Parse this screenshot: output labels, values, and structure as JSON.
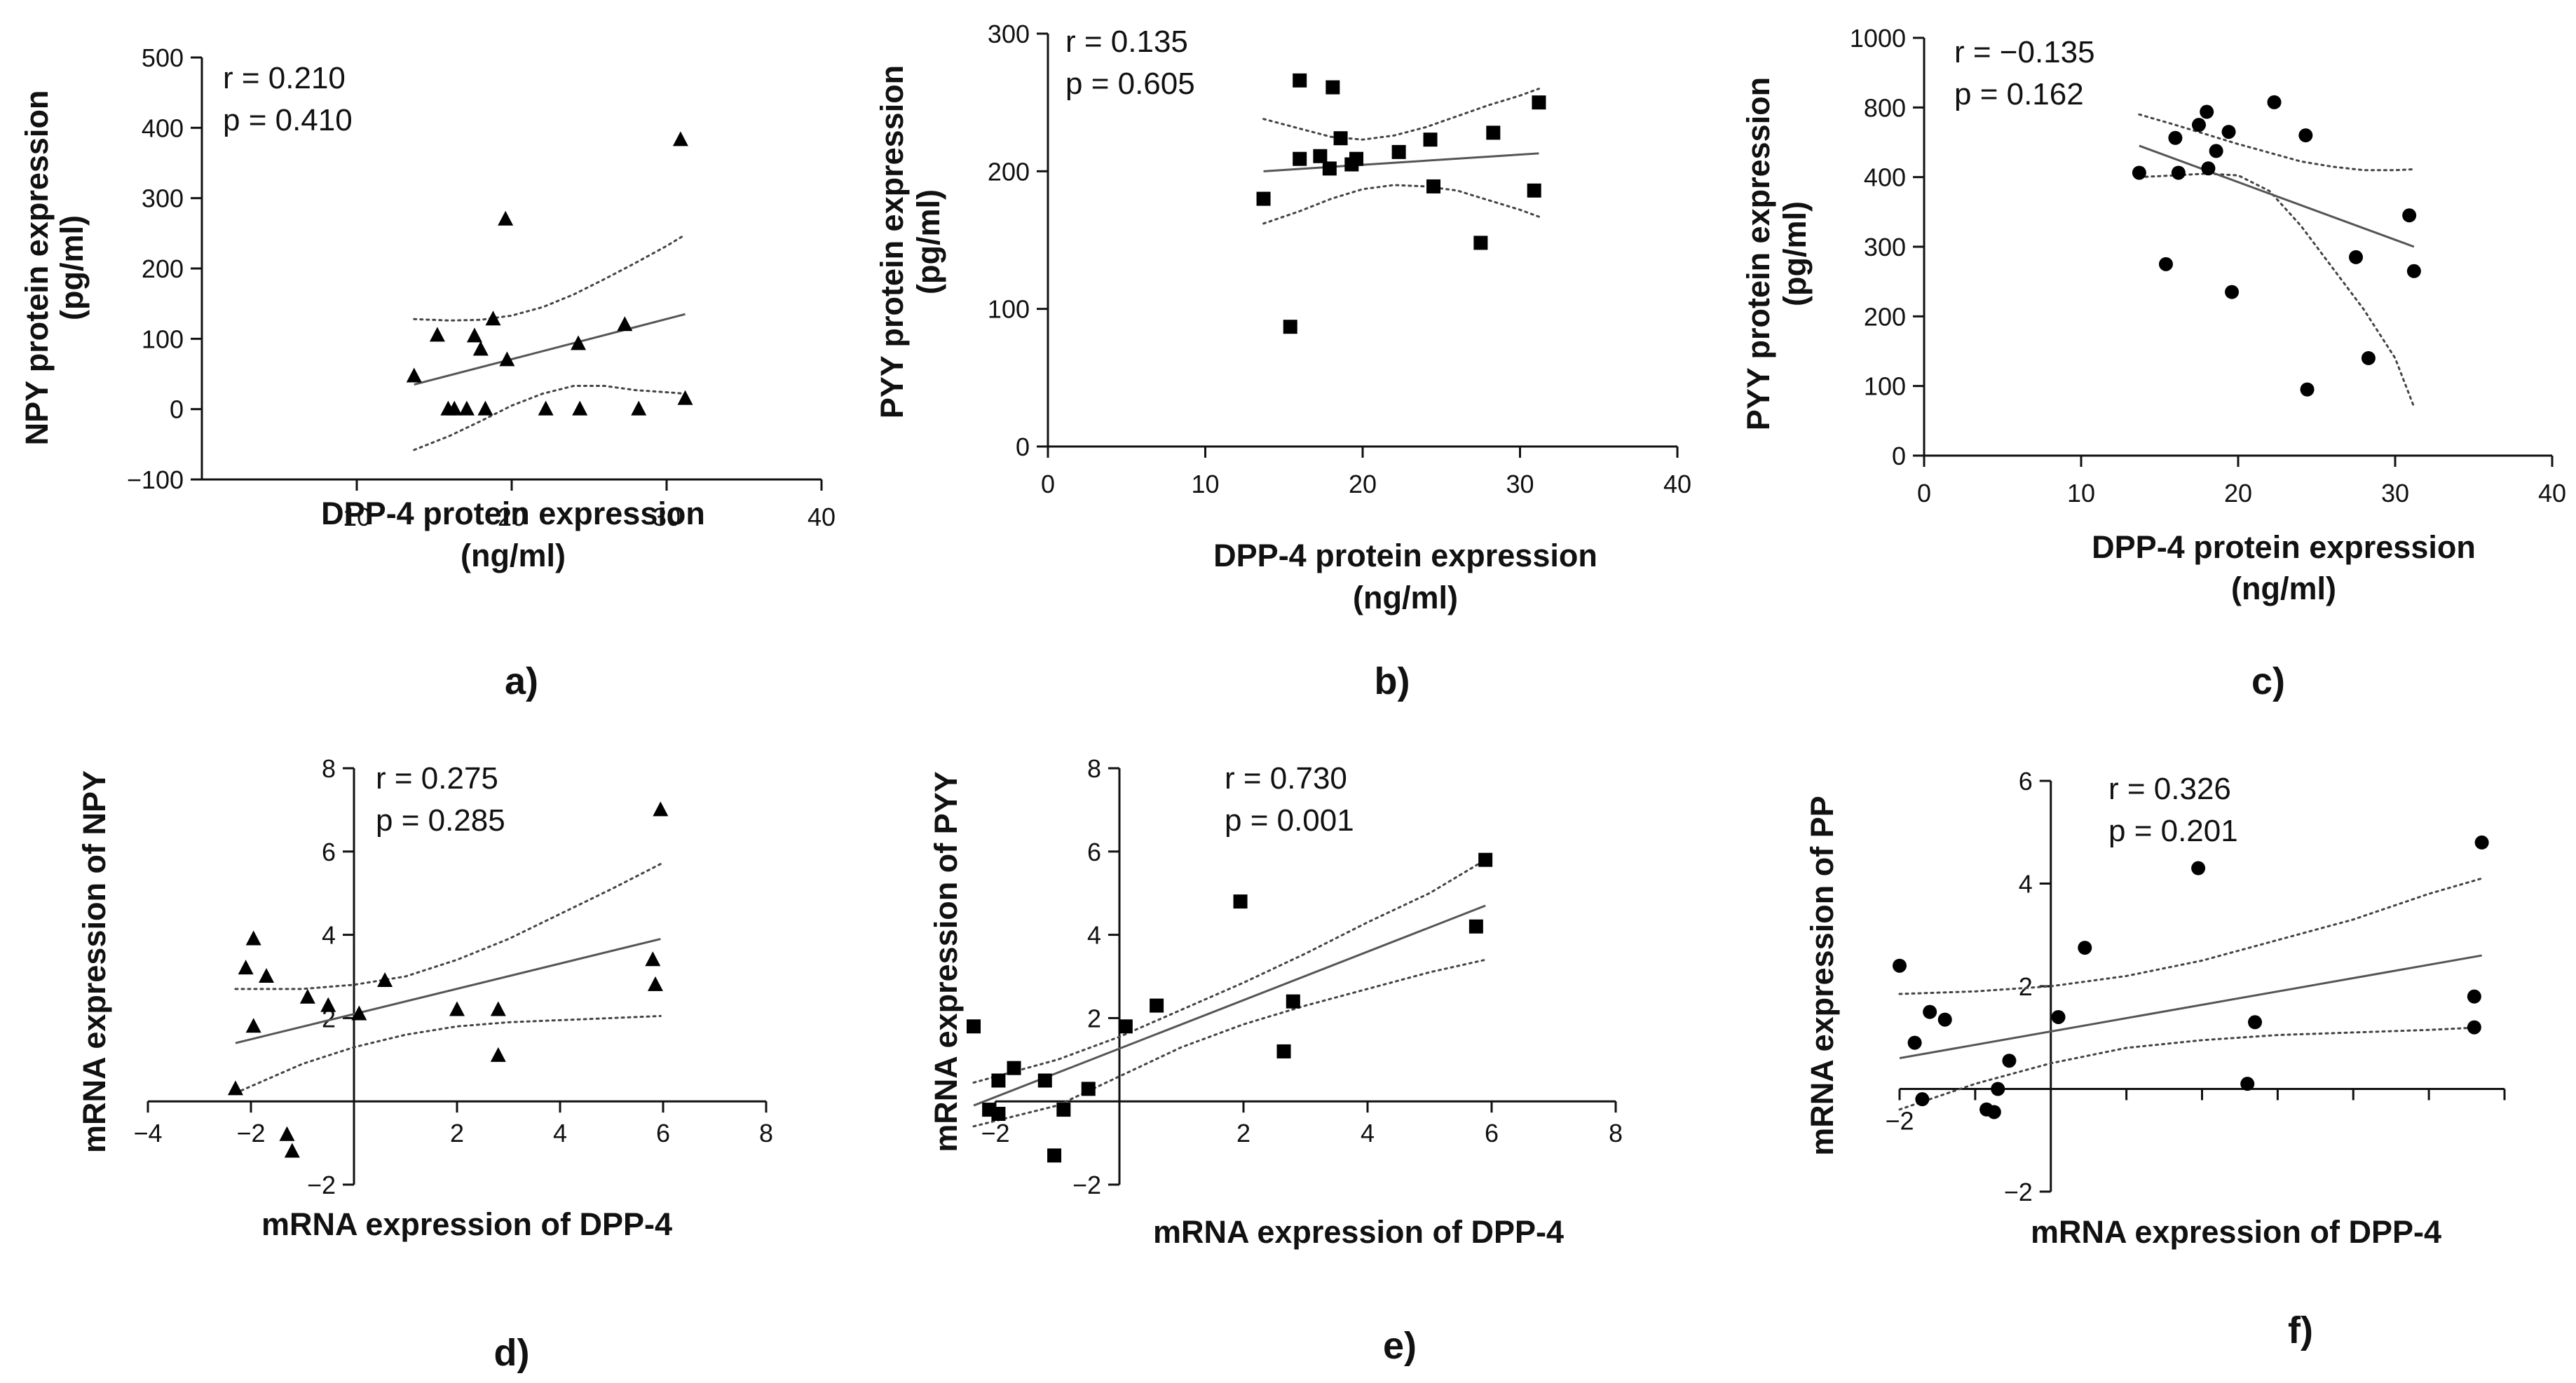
{
  "chart_data": [
    {
      "type": "scatter",
      "panel_label": "a)",
      "xlabel_line1": "DPP-4 protein expression",
      "xlabel_line2": "(ng/ml)",
      "ylabel_line1": "NPY protein expression",
      "ylabel_line2": "(pg/ml)",
      "stat_r": "r = 0.210",
      "stat_p": "p = 0.410",
      "marker": "triangle",
      "xlim": [
        0,
        40
      ],
      "ylim": [
        -100,
        500
      ],
      "xticks": [
        10,
        20,
        30,
        40
      ],
      "xtick_labels": [
        "10",
        "20",
        "30",
        "40"
      ],
      "yticks": [
        -100,
        0,
        100,
        200,
        300,
        400,
        500
      ],
      "ytick_labels": [
        "−100",
        "0",
        "100",
        "200",
        "300",
        "400",
        "500"
      ],
      "x": [
        13.7,
        15.2,
        15.9,
        16.3,
        17.1,
        17.6,
        18.0,
        18.3,
        18.8,
        19.6,
        19.7,
        22.2,
        24.3,
        24.4,
        27.3,
        28.2,
        30.9,
        31.2
      ],
      "y": [
        47,
        105,
        0,
        0,
        0,
        104,
        85,
        0,
        128,
        270,
        70,
        0,
        93,
        0,
        120,
        0,
        383,
        15
      ],
      "fit": {
        "x": [
          13.7,
          31.2
        ],
        "y": [
          35,
          135
        ]
      },
      "ci_upper": {
        "x": [
          13.7,
          16,
          18,
          20,
          22,
          24,
          26,
          28,
          30,
          31.2
        ],
        "y": [
          128,
          126,
          127,
          133,
          145,
          163,
          185,
          208,
          232,
          248
        ]
      },
      "ci_lower": {
        "x": [
          13.7,
          16,
          18,
          20,
          22,
          24,
          26,
          28,
          30,
          31.2
        ],
        "y": [
          -58,
          -38,
          -17,
          5,
          22,
          33,
          33,
          27,
          24,
          22
        ]
      }
    },
    {
      "type": "scatter",
      "panel_label": "b)",
      "xlabel_line1": "DPP-4 protein expression",
      "xlabel_line2": "(ng/ml)",
      "ylabel_line1": "PYY protein expression",
      "ylabel_line2": "(pg/ml)",
      "stat_r": "r = 0.135",
      "stat_p": "p = 0.605",
      "marker": "square",
      "xlim": [
        0,
        40
      ],
      "ylim": [
        0,
        300
      ],
      "xticks": [
        0,
        10,
        20,
        30,
        40
      ],
      "xtick_labels": [
        "0",
        "10",
        "20",
        "30",
        "40"
      ],
      "yticks": [
        0,
        100,
        200,
        300
      ],
      "ytick_labels": [
        "0",
        "100",
        "200",
        "300"
      ],
      "x": [
        13.7,
        15.4,
        16.0,
        16.0,
        17.3,
        17.9,
        18.1,
        18.6,
        19.3,
        19.6,
        22.3,
        24.3,
        24.5,
        27.5,
        28.3,
        30.9,
        31.2
      ],
      "y": [
        180,
        87,
        266,
        209,
        211,
        202,
        261,
        224,
        205,
        209,
        214,
        223,
        189,
        148,
        228,
        186,
        250
      ],
      "fit": {
        "x": [
          13.7,
          31.2
        ],
        "y": [
          200,
          213
        ]
      },
      "ci_upper": {
        "x": [
          13.7,
          16,
          18,
          20,
          22,
          24,
          26,
          28,
          30,
          31.2
        ],
        "y": [
          238,
          231,
          225,
          223,
          226,
          232,
          240,
          248,
          255,
          260
        ]
      },
      "ci_lower": {
        "x": [
          13.7,
          16,
          18,
          20,
          22,
          24,
          26,
          28,
          30,
          31.2
        ],
        "y": [
          162,
          171,
          180,
          187,
          190,
          189,
          186,
          179,
          172,
          167
        ]
      }
    },
    {
      "type": "scatter",
      "panel_label": "c)",
      "xlabel_line1": "DPP-4 protein expression",
      "xlabel_line2": "(ng/ml)",
      "ylabel_line1": "PYY protein expression",
      "ylabel_line2": "(pg/ml)",
      "stat_r": "r = −0.135",
      "stat_p": "p = 0.162",
      "marker": "circle",
      "xlim": [
        0,
        40
      ],
      "ylim": [
        0,
        1000
      ],
      "xticks": [
        0,
        10,
        20,
        30,
        40
      ],
      "xtick_labels": [
        "0",
        "10",
        "20",
        "30",
        "40"
      ],
      "yticks": [
        0,
        100,
        200,
        300,
        400,
        800,
        1000
      ],
      "ytick_labels": [
        "0",
        "100",
        "200",
        "300",
        "400",
        "800",
        "1000"
      ],
      "x": [
        13.7,
        15.4,
        16.0,
        16.2,
        17.5,
        18.0,
        18.1,
        18.6,
        19.4,
        19.6,
        22.3,
        24.3,
        24.4,
        27.5,
        28.3,
        30.9,
        31.2
      ],
      "y": [
        425,
        275,
        625,
        425,
        700,
        775,
        450,
        550,
        660,
        235,
        815,
        640,
        95,
        285,
        140,
        345,
        265
      ],
      "fit": {
        "x": [
          13.7,
          31.2
        ],
        "y": [
          580,
          300
        ]
      },
      "ci_upper": {
        "x": [
          13.7,
          16,
          18,
          20,
          22,
          24,
          26,
          28,
          30,
          31.2
        ],
        "y": [
          760,
          700,
          645,
          590,
          540,
          490,
          460,
          440,
          440,
          445
        ]
      },
      "ci_lower": {
        "x": [
          13.7,
          16,
          18,
          20,
          22,
          24,
          26,
          28,
          30,
          31.2
        ],
        "y": [
          400,
          410,
          420,
          410,
          380,
          330,
          270,
          210,
          140,
          70
        ]
      }
    },
    {
      "type": "scatter",
      "panel_label": "d)",
      "xlabel_line1": "mRNA expression of DPP-4",
      "xlabel_line2": "",
      "ylabel_line1": "mRNA expression of NPY",
      "ylabel_line2": "",
      "stat_r": "r = 0.275",
      "stat_p": "p = 0.285",
      "marker": "triangle",
      "xlim": [
        -4,
        8
      ],
      "ylim": [
        -2,
        8
      ],
      "xticks": [
        -4,
        -2,
        2,
        4,
        6,
        8
      ],
      "xtick_labels": [
        "−4",
        "−2",
        "2",
        "4",
        "6",
        "8"
      ],
      "yticks": [
        -2,
        2,
        4,
        6,
        8
      ],
      "ytick_labels": [
        "−2",
        "2",
        "4",
        "6",
        "8"
      ],
      "x": [
        -2.3,
        -2.1,
        -1.95,
        -1.95,
        -1.7,
        -1.3,
        -1.2,
        -0.9,
        -0.5,
        0.1,
        0.6,
        2.0,
        2.8,
        2.8,
        5.8,
        5.85,
        5.95
      ],
      "y": [
        0.3,
        3.2,
        3.9,
        1.8,
        3.0,
        -0.8,
        -1.2,
        2.5,
        2.3,
        2.1,
        2.9,
        2.2,
        1.1,
        2.2,
        3.4,
        2.8,
        7.0
      ],
      "fit": {
        "x": [
          -2.3,
          5.95
        ],
        "y": [
          1.4,
          3.9
        ]
      },
      "ci_upper": {
        "x": [
          -2.3,
          -1,
          0,
          1,
          2,
          3,
          4,
          5,
          5.95
        ],
        "y": [
          2.7,
          2.7,
          2.8,
          3.0,
          3.4,
          3.9,
          4.5,
          5.1,
          5.7
        ]
      },
      "ci_lower": {
        "x": [
          -2.3,
          -1,
          0,
          1,
          2,
          3,
          4,
          5,
          5.95
        ],
        "y": [
          0.2,
          0.9,
          1.3,
          1.6,
          1.8,
          1.9,
          1.95,
          2.0,
          2.05
        ]
      }
    },
    {
      "type": "scatter",
      "panel_label": "e)",
      "xlabel_line1": "mRNA expression of DPP-4",
      "xlabel_line2": "",
      "ylabel_line1": "mRNA expression of PYY",
      "ylabel_line2": "",
      "stat_r": "r = 0.730",
      "stat_p": "p = 0.001",
      "marker": "square",
      "xlim": [
        -2,
        8
      ],
      "ylim": [
        -2,
        8
      ],
      "xticks": [
        -2,
        2,
        4,
        6,
        8
      ],
      "xtick_labels": [
        "−2",
        "2",
        "4",
        "6",
        "8"
      ],
      "yticks": [
        -2,
        2,
        4,
        6,
        8
      ],
      "ytick_labels": [
        "−2",
        "2",
        "4",
        "6",
        "8"
      ],
      "x": [
        -2.35,
        -2.1,
        -1.95,
        -1.95,
        -1.7,
        -1.2,
        -1.05,
        -0.9,
        -0.5,
        0.1,
        0.6,
        1.95,
        2.65,
        2.8,
        5.75,
        5.9
      ],
      "y": [
        1.8,
        -0.2,
        -0.3,
        0.5,
        0.8,
        0.5,
        -1.3,
        -0.2,
        0.3,
        1.8,
        2.3,
        4.8,
        1.2,
        2.4,
        4.2,
        5.8
      ],
      "fit": {
        "x": [
          -2.35,
          5.9
        ],
        "y": [
          -0.1,
          4.7
        ]
      },
      "ci_upper": {
        "x": [
          -2.35,
          -1,
          0,
          1,
          2,
          3,
          4,
          5,
          5.9
        ],
        "y": [
          0.45,
          1.0,
          1.55,
          2.2,
          2.85,
          3.55,
          4.3,
          5.0,
          5.8
        ]
      },
      "ci_lower": {
        "x": [
          -2.35,
          -1,
          0,
          1,
          2,
          3,
          4,
          5,
          5.9
        ],
        "y": [
          -0.6,
          -0.1,
          0.6,
          1.3,
          1.85,
          2.3,
          2.7,
          3.1,
          3.4
        ]
      }
    },
    {
      "type": "scatter",
      "panel_label": "f)",
      "xlabel_line1": "mRNA expression of DPP-4",
      "xlabel_line2": "",
      "ylabel_line1": "mRNA expression of PP",
      "ylabel_line2": "",
      "stat_r": "r = 0.326",
      "stat_p": "p = 0.201",
      "marker": "circle",
      "xlim": [
        -2,
        6
      ],
      "ylim": [
        -2,
        6
      ],
      "xticks": [
        -2,
        -1,
        1,
        2,
        3,
        4,
        5,
        6
      ],
      "xtick_labels": [
        "−2",
        "",
        "",
        "",
        "",
        "",
        "",
        ""
      ],
      "yticks": [
        -2,
        2,
        4,
        6
      ],
      "ytick_labels": [
        "−2",
        "2",
        "4",
        "6"
      ],
      "x": [
        -2.0,
        -1.8,
        -1.7,
        -1.6,
        -1.4,
        -0.85,
        -0.75,
        -0.7,
        -0.55,
        0.1,
        0.45,
        1.95,
        2.6,
        2.7,
        5.6,
        5.6,
        5.7
      ],
      "y": [
        2.4,
        0.9,
        -0.2,
        1.5,
        1.35,
        -0.4,
        -0.45,
        0.0,
        0.55,
        1.4,
        2.75,
        4.3,
        0.1,
        1.3,
        1.8,
        1.2,
        4.8
      ],
      "fit": {
        "x": [
          -2.0,
          5.7
        ],
        "y": [
          0.6,
          2.6
        ]
      },
      "ci_upper": {
        "x": [
          -2,
          -1,
          0,
          1,
          2,
          3,
          4,
          5,
          5.7
        ],
        "y": [
          1.85,
          1.9,
          2.0,
          2.2,
          2.5,
          2.9,
          3.3,
          3.8,
          4.1
        ]
      },
      "ci_lower": {
        "x": [
          -2,
          -1,
          0,
          1,
          2,
          3,
          4,
          5,
          5.7
        ],
        "y": [
          -0.4,
          0.1,
          0.5,
          0.8,
          0.95,
          1.05,
          1.1,
          1.15,
          1.2
        ]
      }
    }
  ]
}
